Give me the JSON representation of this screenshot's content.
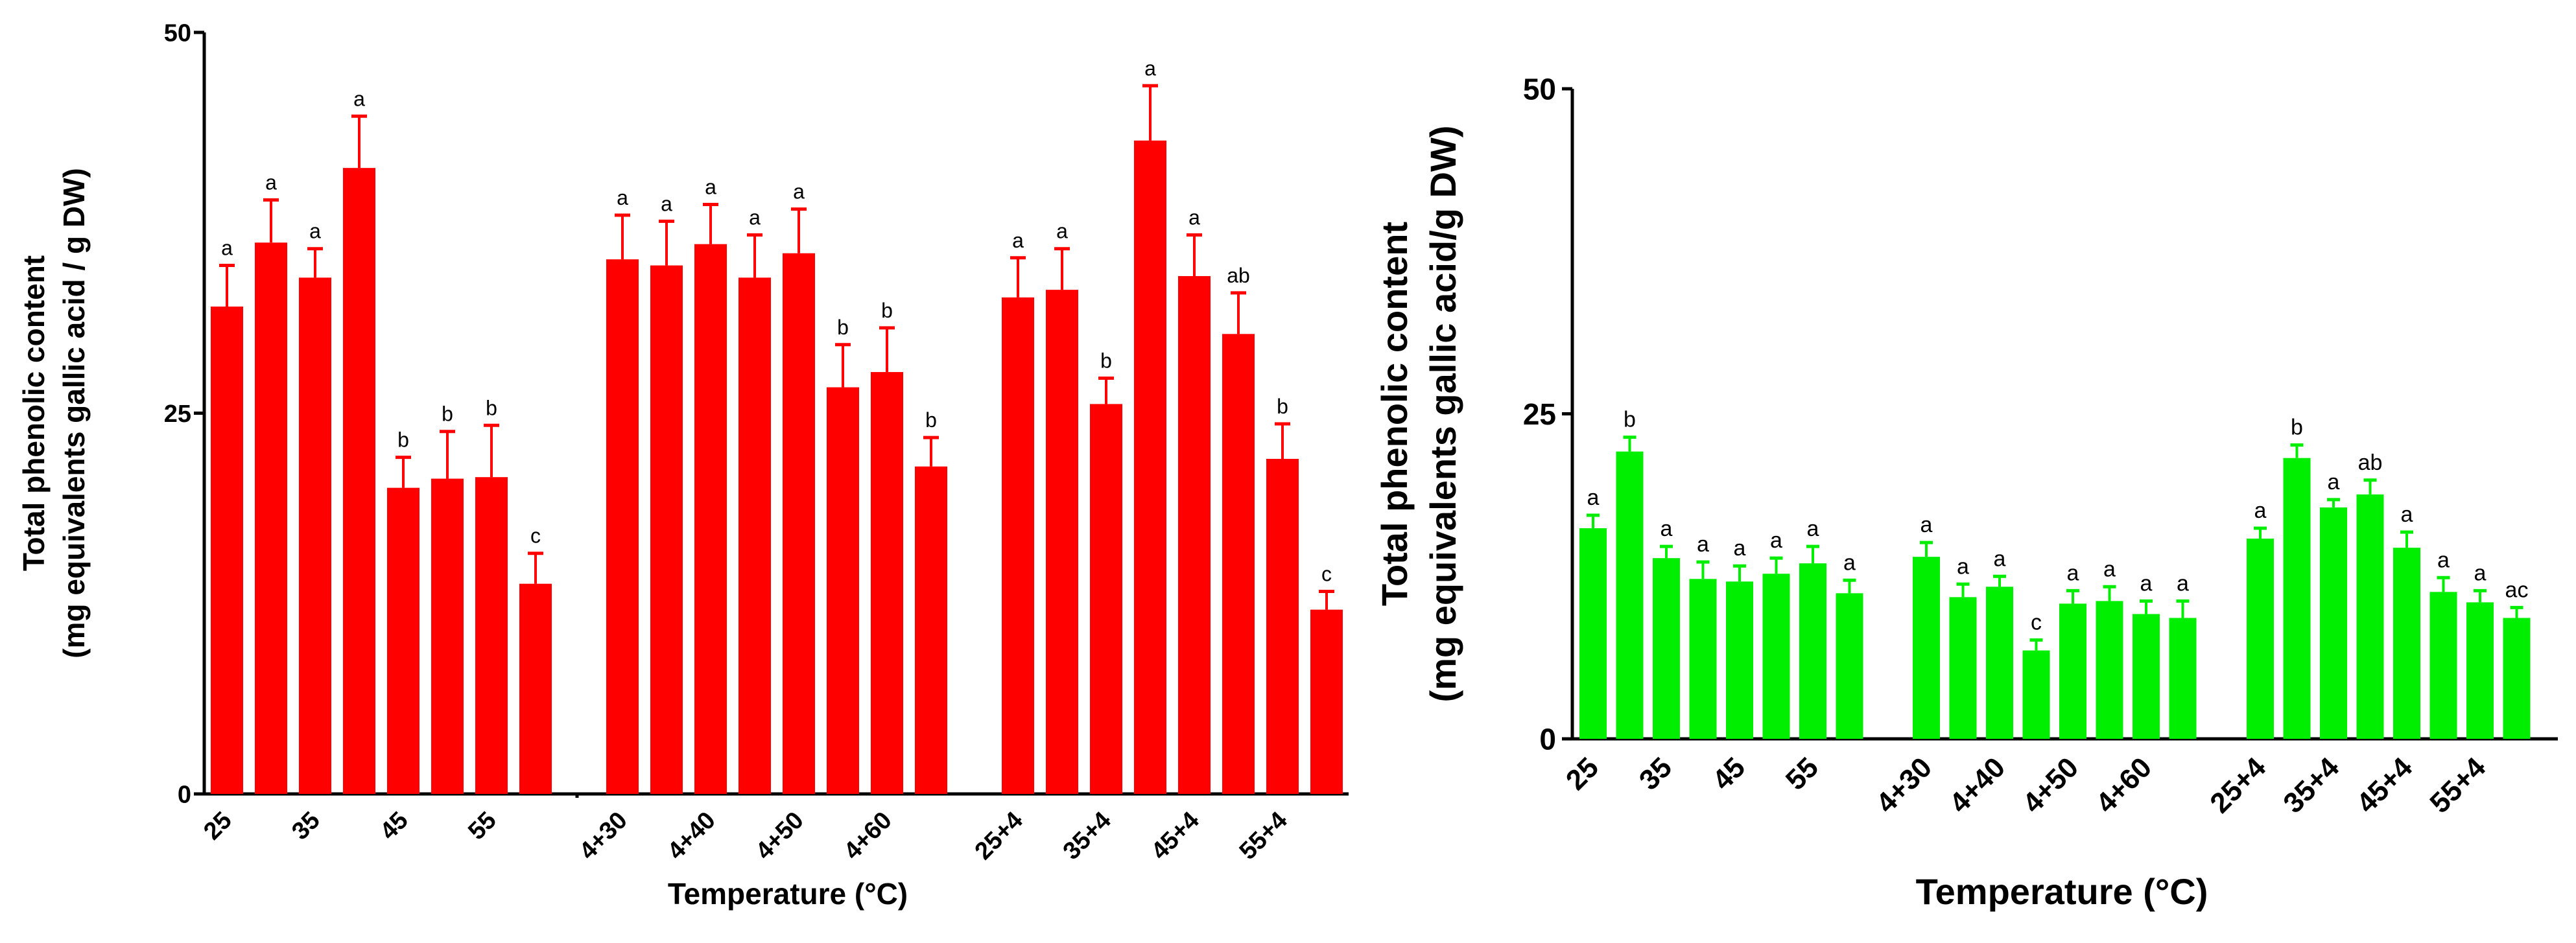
{
  "chart_data": [
    {
      "type": "bar",
      "color": "#ff0000",
      "ylabel_line1": "Total phenolic content",
      "ylabel_line2": "(mg equivalents gallic acid / g DW)",
      "xlabel": "Temperature (°C)",
      "ylim": [
        0,
        50
      ],
      "yticks": [
        "0",
        "25",
        "50"
      ],
      "xtick_labels": [
        "25",
        "35",
        "45",
        "55",
        "4+30",
        "4+40",
        "4+50",
        "4+60",
        "25+4",
        "35+4",
        "45+4",
        "55+4"
      ],
      "groups": [
        {
          "values": [
            32,
            36.2,
            33.9,
            41.1,
            20.1,
            20.7,
            20.8,
            13.8
          ],
          "errors": [
            2.7,
            2.8,
            1.9,
            3.4,
            2.0,
            3.1,
            3.4,
            2.0
          ],
          "letters": [
            "a",
            "a",
            "a",
            "a",
            "b",
            "b",
            "b",
            "c"
          ]
        },
        {
          "values": [
            35.1,
            34.7,
            36.1,
            33.9,
            35.5,
            26.7,
            27.7,
            21.5
          ],
          "errors": [
            2.9,
            2.9,
            2.6,
            2.8,
            2.9,
            2.8,
            2.9,
            1.9
          ],
          "letters": [
            "a",
            "a",
            "a",
            "a",
            "a",
            "b",
            "b",
            "b"
          ]
        },
        {
          "values": [
            32.6,
            33.1,
            25.6,
            42.9,
            34.0,
            30.2,
            22.0,
            12.1
          ],
          "errors": [
            2.6,
            2.7,
            1.7,
            3.6,
            2.7,
            2.7,
            2.3,
            1.2
          ],
          "letters": [
            "a",
            "a",
            "b",
            "a",
            "a",
            "ab",
            "b",
            "c"
          ]
        }
      ]
    },
    {
      "type": "bar",
      "color": "#00ee00",
      "ylabel_line1": "Total phenolic content",
      "ylabel_line2": "(mg equivalents gallic acid/g DW)",
      "xlabel": "Temperature (°C)",
      "ylim": [
        0,
        50
      ],
      "yticks": [
        "0",
        "25",
        "50"
      ],
      "xtick_labels": [
        "25",
        "35",
        "45",
        "55",
        "4+30",
        "4+40",
        "4+50",
        "4+60",
        "25+4",
        "35+4",
        "45+4",
        "55+4"
      ],
      "groups": [
        {
          "values": [
            16.2,
            22.1,
            13.9,
            12.3,
            12.1,
            12.7,
            13.5,
            11.2
          ],
          "errors": [
            1.0,
            1.1,
            0.9,
            1.3,
            1.2,
            1.2,
            1.3,
            1.0
          ],
          "letters": [
            "a",
            "b",
            "a",
            "a",
            "a",
            "a",
            "a",
            "a"
          ]
        },
        {
          "values": [
            14.0,
            10.9,
            11.7,
            6.8,
            10.4,
            10.6,
            9.6,
            9.3
          ],
          "errors": [
            1.1,
            1.0,
            0.8,
            0.8,
            1.0,
            1.1,
            1.0,
            1.3
          ],
          "letters": [
            "a",
            "a",
            "a",
            "c",
            "a",
            "a",
            "a",
            "a"
          ]
        },
        {
          "values": [
            15.4,
            21.6,
            17.8,
            18.8,
            14.7,
            11.3,
            10.5,
            9.3
          ],
          "errors": [
            0.8,
            1.0,
            0.6,
            1.1,
            1.2,
            1.1,
            0.9,
            0.8
          ],
          "letters": [
            "a",
            "b",
            "a",
            "ab",
            "a",
            "a",
            "a",
            "ac"
          ]
        }
      ]
    }
  ]
}
